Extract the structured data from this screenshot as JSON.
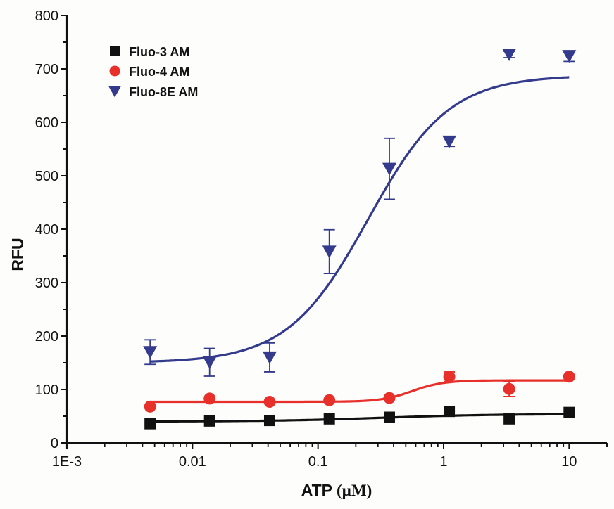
{
  "chart_data": {
    "type": "scatter",
    "title": "",
    "xlabel": "ATP",
    "xlabel_unit": "(µM)",
    "ylabel": "RFU",
    "xscale": "log",
    "xlim": [
      0.001,
      20
    ],
    "ylim": [
      0,
      800
    ],
    "grid": false,
    "legend_position": "top-left",
    "x_ticks": [
      {
        "value": 0.001,
        "label": "1E-3"
      },
      {
        "value": 0.01,
        "label": "0.01"
      },
      {
        "value": 0.1,
        "label": "0.1"
      },
      {
        "value": 1,
        "label": "1"
      },
      {
        "value": 10,
        "label": "10"
      }
    ],
    "y_ticks": [
      {
        "value": 0,
        "label": "0"
      },
      {
        "value": 100,
        "label": "100"
      },
      {
        "value": 200,
        "label": "200"
      },
      {
        "value": 300,
        "label": "300"
      },
      {
        "value": 400,
        "label": "400"
      },
      {
        "value": 500,
        "label": "500"
      },
      {
        "value": 600,
        "label": "600"
      },
      {
        "value": 700,
        "label": "700"
      },
      {
        "value": 800,
        "label": "800"
      }
    ],
    "y_minor_ticks": [
      50,
      150,
      250,
      350,
      450,
      550,
      650,
      750
    ],
    "x": [
      0.0046,
      0.0137,
      0.0412,
      0.123,
      0.37,
      1.11,
      3.33,
      10
    ],
    "series": [
      {
        "name": "Fluo-3 AM",
        "marker": "square",
        "color": "#111111",
        "values": [
          36,
          41,
          42,
          45,
          48,
          59,
          45,
          57
        ],
        "errors": [
          0,
          0,
          0,
          0,
          0,
          0,
          0,
          0
        ],
        "fit": {
          "bottom": 40,
          "top": 54,
          "logEC50": -0.5,
          "hill": 1.0
        }
      },
      {
        "name": "Fluo-4 AM",
        "marker": "circle",
        "color": "#e8302a",
        "values": [
          68,
          83,
          77,
          80,
          84,
          124,
          101,
          124
        ],
        "errors": [
          0,
          0,
          0,
          0,
          0,
          9,
          14,
          0
        ],
        "fit": {
          "bottom": 77,
          "top": 117,
          "logEC50": -0.25,
          "hill": 3.5
        }
      },
      {
        "name": "Fluo-8E AM",
        "marker": "triangle-down",
        "color": "#343a8c",
        "values": [
          170,
          151,
          160,
          358,
          513,
          564,
          727,
          724
        ],
        "errors": [
          23,
          26,
          27,
          41,
          57,
          9,
          6,
          10
        ],
        "fit": {
          "bottom": 150,
          "top": 688,
          "logEC50": -0.6,
          "hill": 1.35
        }
      }
    ]
  }
}
